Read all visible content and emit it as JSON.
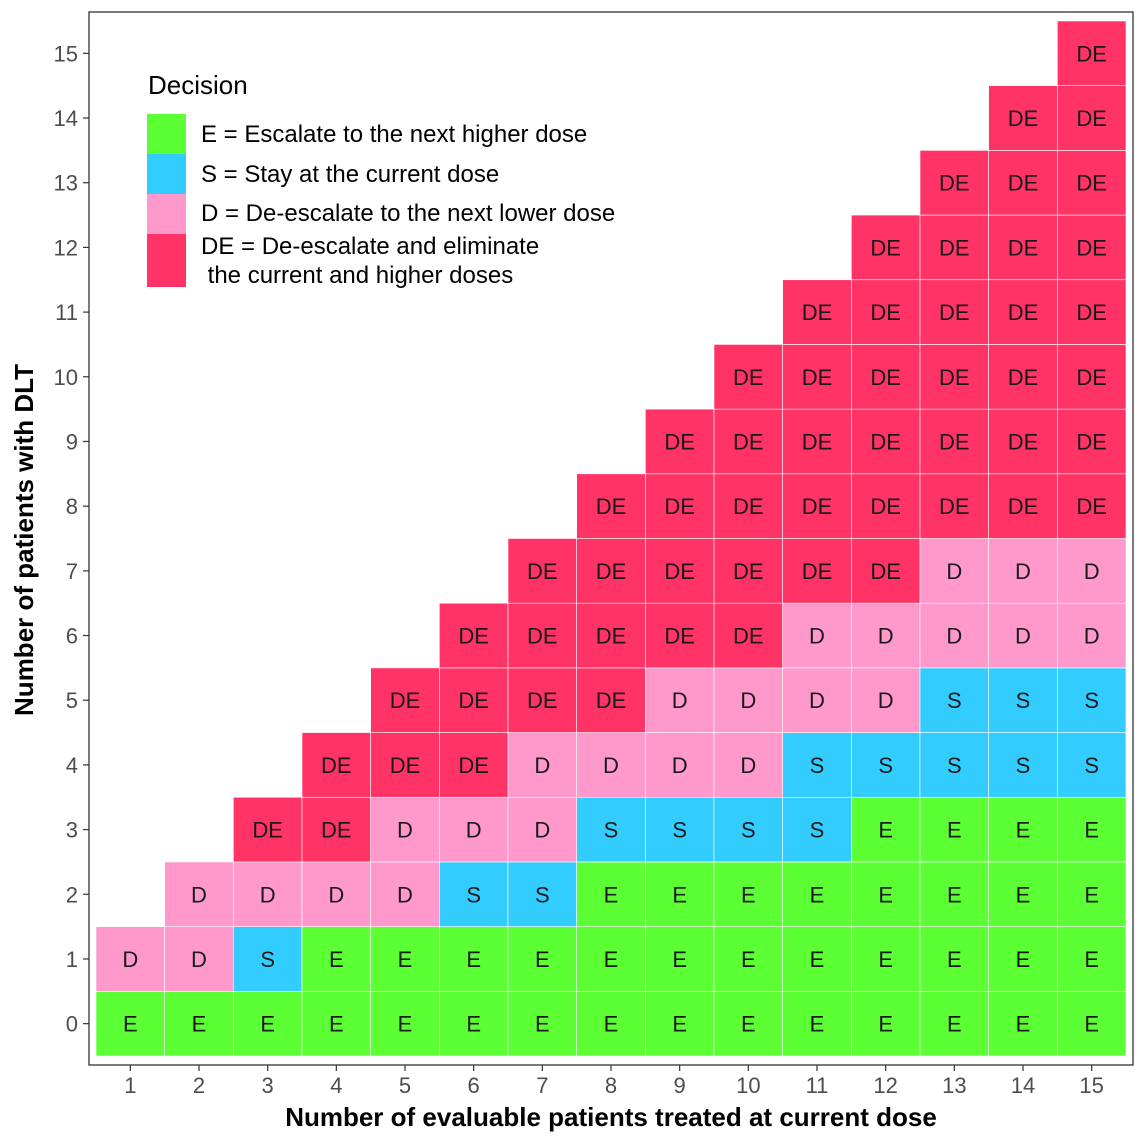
{
  "chart_data": {
    "type": "heatmap",
    "xlabel": "Number of evaluable patients treated at current dose",
    "ylabel": "Number of patients with DLT",
    "x_ticks": [
      1,
      2,
      3,
      4,
      5,
      6,
      7,
      8,
      9,
      10,
      11,
      12,
      13,
      14,
      15
    ],
    "y_ticks": [
      0,
      1,
      2,
      3,
      4,
      5,
      6,
      7,
      8,
      9,
      10,
      11,
      12,
      13,
      14,
      15
    ],
    "xlim": [
      0.5,
      15.5
    ],
    "ylim": [
      -0.5,
      15.5
    ],
    "legend": {
      "title": "Decision",
      "position": "top-left",
      "items": [
        {
          "code": "E",
          "label": "E = Escalate to the next higher dose",
          "color": "#5cff33"
        },
        {
          "code": "S",
          "label": "S = Stay at the current dose",
          "color": "#33ccff"
        },
        {
          "code": "D",
          "label": "D = De-escalate to the next lower dose",
          "color": "#ff99cc"
        },
        {
          "code": "DE",
          "label_lines": [
            "DE = De-escalate and eliminate",
            " the current and higher doses"
          ],
          "color": "#ff3366"
        }
      ]
    },
    "decisions": {
      "1": [
        "E",
        "D"
      ],
      "2": [
        "E",
        "D",
        "D"
      ],
      "3": [
        "E",
        "S",
        "D",
        "DE"
      ],
      "4": [
        "E",
        "E",
        "D",
        "DE",
        "DE"
      ],
      "5": [
        "E",
        "E",
        "D",
        "D",
        "DE",
        "DE"
      ],
      "6": [
        "E",
        "E",
        "S",
        "D",
        "DE",
        "DE",
        "DE"
      ],
      "7": [
        "E",
        "E",
        "S",
        "D",
        "D",
        "DE",
        "DE",
        "DE"
      ],
      "8": [
        "E",
        "E",
        "E",
        "S",
        "D",
        "DE",
        "DE",
        "DE",
        "DE"
      ],
      "9": [
        "E",
        "E",
        "E",
        "S",
        "D",
        "D",
        "DE",
        "DE",
        "DE",
        "DE"
      ],
      "10": [
        "E",
        "E",
        "E",
        "S",
        "D",
        "D",
        "DE",
        "DE",
        "DE",
        "DE",
        "DE"
      ],
      "11": [
        "E",
        "E",
        "E",
        "S",
        "S",
        "D",
        "D",
        "DE",
        "DE",
        "DE",
        "DE",
        "DE"
      ],
      "12": [
        "E",
        "E",
        "E",
        "E",
        "S",
        "D",
        "D",
        "DE",
        "DE",
        "DE",
        "DE",
        "DE",
        "DE"
      ],
      "13": [
        "E",
        "E",
        "E",
        "E",
        "S",
        "S",
        "D",
        "D",
        "DE",
        "DE",
        "DE",
        "DE",
        "DE",
        "DE"
      ],
      "14": [
        "E",
        "E",
        "E",
        "E",
        "S",
        "S",
        "D",
        "D",
        "DE",
        "DE",
        "DE",
        "DE",
        "DE",
        "DE",
        "DE"
      ],
      "15": [
        "E",
        "E",
        "E",
        "E",
        "S",
        "S",
        "D",
        "D",
        "DE",
        "DE",
        "DE",
        "DE",
        "DE",
        "DE",
        "DE",
        "DE"
      ]
    }
  }
}
